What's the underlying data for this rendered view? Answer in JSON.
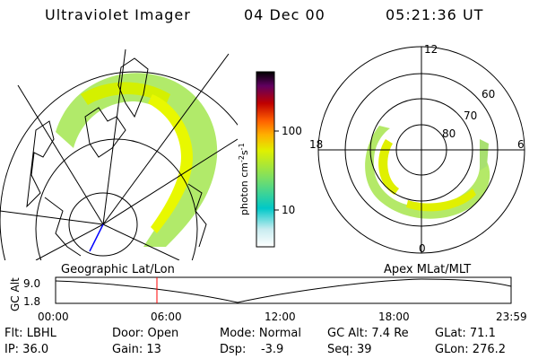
{
  "header": {
    "instrument": "Ultraviolet Imager",
    "date": "04 Dec 00",
    "time": "05:21:36 UT"
  },
  "colorbar": {
    "label": "photon cm",
    "label_sup1": "-2",
    "label_mid": "s",
    "label_sup2": "-1",
    "ticks": [
      "100",
      "10"
    ],
    "colors": [
      "#ffffff",
      "#00c8c8",
      "#80e060",
      "#e0f000",
      "#ff9000",
      "#c00000",
      "#600060",
      "#000000"
    ]
  },
  "polar_plot": {
    "mlt_labels": {
      "top": "12",
      "left": "18",
      "right": "6",
      "bottom": "0"
    },
    "lat_labels": [
      "60",
      "70",
      "80"
    ]
  },
  "altitude_strip": {
    "left_title": "Geographic Lat/Lon",
    "right_title": "Apex MLat/MLT",
    "axis_label": "GC Alt",
    "y_ticks": [
      "9.0",
      "1.8"
    ],
    "x_ticks": [
      "00:00",
      "06:00",
      "12:00",
      "18:00",
      "23:59"
    ]
  },
  "status": {
    "flt": "Flt: LBHL",
    "door": "Door: Open",
    "mode": "Mode: Normal",
    "gcalt": "GC Alt: 7.4 Re",
    "glat": "GLat:  71.1",
    "ip": "IP: 36.0",
    "gain": "Gain: 13",
    "dsp": "Dsp:    -3.9",
    "seq": "Seq: 39",
    "glon": "GLon: 276.2"
  }
}
